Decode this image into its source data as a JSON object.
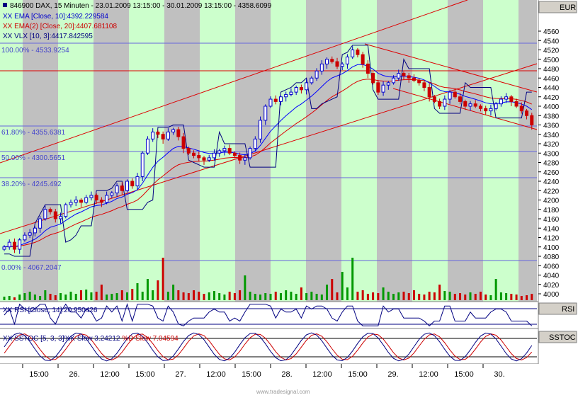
{
  "header": {
    "symbol_line": "846900  DAX, 15 Minuten - 23.01.2009 13:15:00 - 30.01.2009 13:15:00 - 4358.6099",
    "ema10": "XX EMA [Close, 10]:4392.229584",
    "ema20": "XX EMA(2) [Close, 20]:4407.681108",
    "vlx": "XX VLX [10, 3]:4417.842595"
  },
  "price_axis": {
    "currency": "EUR",
    "ticks": [
      "4560",
      "4540",
      "4520",
      "4500",
      "4480",
      "4460",
      "4440",
      "4420",
      "4400",
      "4380",
      "4360",
      "4340",
      "4320",
      "4300",
      "4280",
      "4260",
      "4240",
      "4220",
      "4200",
      "4180",
      "4160",
      "4140",
      "4120",
      "4100",
      "4080",
      "4060",
      "4040",
      "4020",
      "4000"
    ]
  },
  "fib_labels": [
    "100.00% - 4533.9254",
    "61.80% - 4355.6381",
    "50.00% - 4300.5651",
    "38.20% - 4245.492",
    "0.00% - 4067.2047"
  ],
  "rsi": {
    "label": "XX RSI [Close, 14]:20.950426",
    "pane_name": "RSI"
  },
  "sstoc": {
    "label_main": "XX SSTOC [5, 3, 3]%K Slow 3.24212",
    "label_d": " %D Slow 7.04594",
    "pane_name": "SSTOC"
  },
  "time_axis": {
    "labels": [
      "15:00",
      "26.",
      "12:00",
      "15:00",
      "27.",
      "12:00",
      "15:00",
      "28.",
      "12:00",
      "15:00",
      "29.",
      "12:00",
      "15:00",
      "30."
    ]
  },
  "watermark": "www.tradesignal.com",
  "colors": {
    "up": "#0000cc",
    "down": "#cc0000",
    "green_band": "#ccffcc",
    "grey_band": "#c0c0c0",
    "ema10": "#0000ff",
    "ema20": "#dd0000",
    "vlx": "#000080",
    "channel": "#dd0000",
    "fib": "#6666dd",
    "accent": "#0000cc"
  },
  "chart_data": {
    "type": "line",
    "title": "846900  DAX, 15 Minuten",
    "ylim": [
      3990,
      4570
    ],
    "series_close": [
      4100,
      4110,
      4095,
      4115,
      4125,
      4130,
      4140,
      4160,
      4180,
      4175,
      4160,
      4165,
      4190,
      4195,
      4200,
      4195,
      4205,
      4210,
      4200,
      4195,
      4210,
      4215,
      4230,
      4220,
      4240,
      4230,
      4250,
      4300,
      4330,
      4345,
      4340,
      4330,
      4345,
      4350,
      4335,
      4310,
      4300,
      4295,
      4290,
      4285,
      4290,
      4300,
      4305,
      4310,
      4300,
      4295,
      4285,
      4290,
      4310,
      4330,
      4370,
      4400,
      4415,
      4410,
      4420,
      4425,
      4430,
      4440,
      4435,
      4450,
      4460,
      4475,
      4490,
      4500,
      4495,
      4485,
      4490,
      4505,
      4520,
      4510,
      4490,
      4470,
      4450,
      4430,
      4445,
      4450,
      4460,
      4470,
      4465,
      4460,
      4455,
      4450,
      4440,
      4420,
      4410,
      4400,
      4415,
      4430,
      4420,
      4410,
      4400,
      4405,
      4400,
      4395,
      4390,
      4395,
      4405,
      4415,
      4420,
      4410,
      4400,
      4390,
      4380,
      4360
    ],
    "volume": [
      5,
      6,
      4,
      8,
      10,
      12,
      8,
      6,
      14,
      9,
      7,
      10,
      8,
      12,
      9,
      14,
      15,
      11,
      12,
      22,
      8,
      9,
      10,
      14,
      11,
      16,
      24,
      12,
      30,
      14,
      28,
      60,
      12,
      22,
      14,
      11,
      10,
      14,
      12,
      9,
      11,
      13,
      10,
      8,
      12,
      10,
      14,
      35,
      12,
      9,
      8,
      10,
      9,
      12,
      10,
      14,
      12,
      9,
      18,
      10,
      12,
      9,
      8,
      22,
      30,
      11,
      40,
      18,
      60,
      12,
      14,
      9,
      11,
      10,
      18,
      12,
      9,
      11,
      12,
      10,
      14,
      9,
      8,
      12,
      11,
      22,
      13,
      12,
      9,
      10,
      8,
      11,
      9,
      12,
      8,
      7,
      30,
      11,
      10,
      9,
      8,
      6,
      7,
      9
    ],
    "rsi_value": 20.950426,
    "sstoc_k": 3.24212,
    "sstoc_d": 7.04594
  }
}
